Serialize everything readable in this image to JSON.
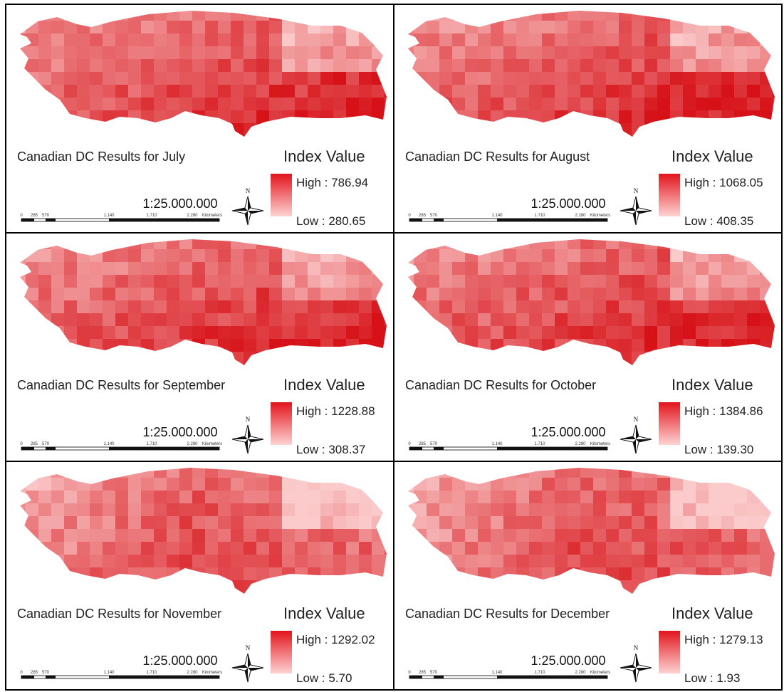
{
  "panels": [
    {
      "title": "Canadian DC Results for July",
      "legend_title": "Index Value",
      "high": "High : 786.94",
      "low": "Low : 280.65",
      "scale": "1:25.000.000"
    },
    {
      "title": "Canadian DC Results for August",
      "legend_title": "Index Value",
      "high": "High : 1068.05",
      "low": "Low : 408.35",
      "scale": "1:25.000.000"
    },
    {
      "title": "Canadian DC Results for September",
      "legend_title": "Index Value",
      "high": "High : 1228.88",
      "low": "Low : 308.37",
      "scale": "1:25.000.000"
    },
    {
      "title": "Canadian DC Results for October",
      "legend_title": "Index Value",
      "high": "High : 1384.86",
      "low": "Low : 139.30",
      "scale": "1:25.000.000"
    },
    {
      "title": "Canadian DC Results for November",
      "legend_title": "Index Value",
      "high": "High : 1292.02",
      "low": "Low : 5.70",
      "scale": "1:25.000.000"
    },
    {
      "title": "Canadian DC Results for December",
      "legend_title": "Index Value",
      "high": "High : 1279.13",
      "low": "Low : 1.93",
      "scale": "1:25.000.000"
    }
  ],
  "scale_bar_labels": [
    "0",
    "285",
    "570",
    "1.140",
    "1.710",
    "2.280",
    "Kilometers"
  ],
  "north": "N"
}
